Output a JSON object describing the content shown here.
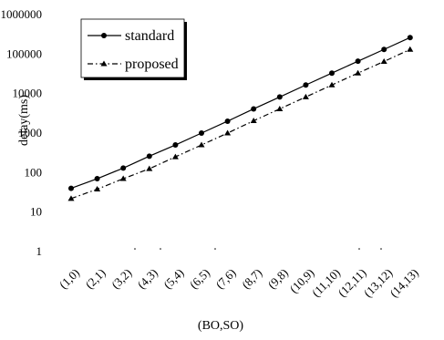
{
  "chart_data": {
    "type": "line",
    "xlabel": "(BO,SO)",
    "ylabel": "delay(ms)",
    "yscale": "log",
    "ylim": [
      1,
      1000000
    ],
    "yticks": [
      "1",
      "10",
      "100",
      "1000",
      "10000",
      "100000",
      "1000000"
    ],
    "categories": [
      "(1,0)",
      "(2,1)",
      "(3,2)",
      "(4,3)",
      "(5,4)",
      "(6,5)",
      "(7,6)",
      "(8,7)",
      "(9,8)",
      "(10,9)",
      "(11,10)",
      "(12,11)",
      "(13,12)",
      "(14,13)"
    ],
    "series": [
      {
        "name": "standard",
        "marker": "circle",
        "line": "solid",
        "values": [
          40,
          70,
          130,
          260,
          500,
          1000,
          2000,
          4100,
          8200,
          16500,
          33000,
          66000,
          131000,
          262000
        ]
      },
      {
        "name": "proposed",
        "marker": "triangle",
        "line": "dash-dot",
        "values": [
          22,
          38,
          70,
          125,
          250,
          500,
          1000,
          2050,
          4100,
          8200,
          16500,
          33000,
          65000,
          131000
        ]
      }
    ],
    "legend": "top-left",
    "grid": false
  }
}
